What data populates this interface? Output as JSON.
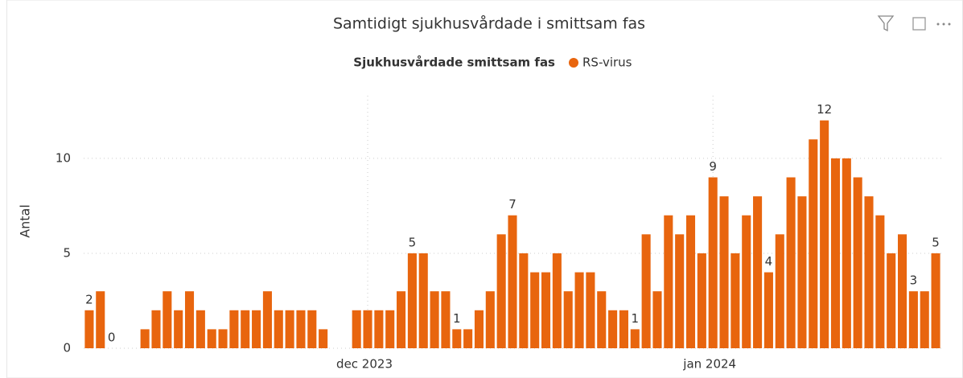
{
  "chart_data": {
    "type": "bar",
    "title": "Samtidigt sjukhusvårdade i smittsam fas",
    "legend_title": "Sjukhusvårdade smittsam fas",
    "y_label": "Antal",
    "categories": [
      null,
      null,
      null,
      null,
      null,
      null,
      null,
      null,
      null,
      null,
      null,
      null,
      null,
      null,
      null,
      null,
      null,
      null,
      null,
      null,
      null,
      null,
      null,
      null,
      null,
      "dec 2023",
      null,
      null,
      null,
      null,
      null,
      null,
      null,
      null,
      null,
      null,
      null,
      null,
      null,
      null,
      null,
      null,
      null,
      null,
      null,
      null,
      null,
      null,
      null,
      null,
      null,
      null,
      null,
      null,
      null,
      null,
      "jan 2024",
      null,
      null,
      null,
      null,
      null,
      null,
      null,
      null,
      null,
      null,
      null,
      null,
      null,
      null,
      null,
      null,
      null,
      null,
      null,
      null
    ],
    "series": [
      {
        "name": "RS-virus",
        "color": "#e8650e",
        "values": [
          2,
          3,
          0,
          null,
          null,
          1,
          2,
          3,
          2,
          3,
          2,
          1,
          1,
          2,
          2,
          2,
          3,
          2,
          2,
          2,
          2,
          1,
          null,
          null,
          2,
          2,
          2,
          2,
          3,
          5,
          5,
          3,
          3,
          1,
          1,
          2,
          3,
          6,
          7,
          5,
          4,
          4,
          5,
          3,
          4,
          4,
          3,
          2,
          2,
          1,
          6,
          3,
          7,
          6,
          7,
          5,
          9,
          8,
          5,
          7,
          8,
          4,
          6,
          9,
          8,
          11,
          12,
          10,
          10,
          9,
          8,
          7,
          5,
          6,
          3,
          3,
          5
        ],
        "value_labels": [
          "2",
          null,
          "0",
          null,
          null,
          null,
          null,
          null,
          null,
          null,
          null,
          null,
          null,
          null,
          null,
          null,
          null,
          null,
          null,
          null,
          null,
          null,
          null,
          null,
          null,
          null,
          null,
          null,
          null,
          "5",
          null,
          null,
          null,
          "1",
          null,
          null,
          null,
          null,
          "7",
          null,
          null,
          null,
          null,
          null,
          null,
          null,
          null,
          null,
          null,
          "1",
          null,
          null,
          null,
          null,
          null,
          null,
          "9",
          null,
          null,
          null,
          null,
          "4",
          null,
          null,
          null,
          null,
          "12",
          null,
          null,
          null,
          null,
          null,
          null,
          null,
          "3",
          null,
          "5"
        ]
      }
    ],
    "ylim": [
      0,
      13.3
    ],
    "yticks": [
      0,
      5,
      10
    ],
    "grid": true
  }
}
